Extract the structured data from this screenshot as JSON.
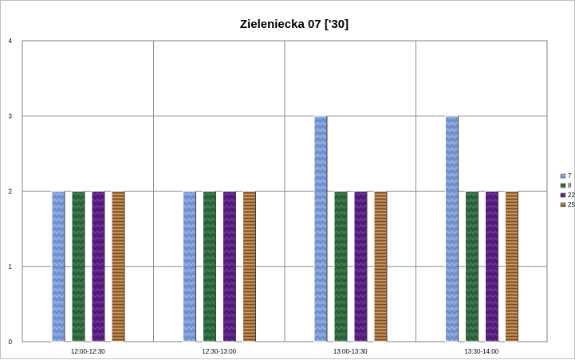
{
  "chart_data": {
    "type": "bar",
    "title": "Zieleniecka 07 ['30]",
    "xlabel": "",
    "ylabel": "",
    "categories": [
      "12:00-12:30",
      "12:30-13:00",
      "13:00-13:30",
      "13:30-14:00"
    ],
    "series": [
      {
        "name": "7",
        "values": [
          2,
          2,
          3,
          3
        ],
        "color": "#7b9bd6"
      },
      {
        "name": "8",
        "values": [
          2,
          2,
          2,
          2
        ],
        "color": "#2f6b3f"
      },
      {
        "name": "22",
        "values": [
          2,
          2,
          2,
          2
        ],
        "color": "#5a1f86"
      },
      {
        "name": "25",
        "values": [
          2,
          2,
          2,
          2
        ],
        "color": "#a8733f"
      }
    ],
    "ylim": [
      0,
      4
    ],
    "yticks": [
      "0",
      "1",
      "2",
      "3",
      "4"
    ],
    "grid": true,
    "legend_position": "right"
  }
}
